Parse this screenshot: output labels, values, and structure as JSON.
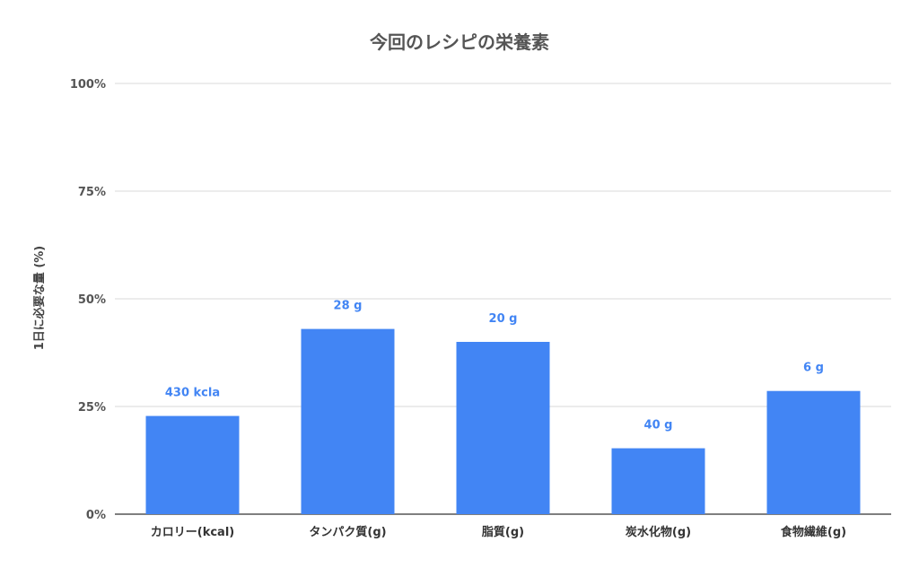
{
  "chart_data": {
    "type": "bar",
    "title": "今回のレシピの栄養素",
    "xlabel": "",
    "ylabel": "1日に必要な量 (%)",
    "ylim": [
      0,
      100
    ],
    "yticks": [
      "0%",
      "25%",
      "50%",
      "75%",
      "100%"
    ],
    "ytick_values": [
      0,
      25,
      50,
      75,
      100
    ],
    "categories": [
      "カロリー(kcal)",
      "タンパク質(g)",
      "脂質(g)",
      "炭水化物(g)",
      "食物繊維(g)"
    ],
    "values": [
      22.8,
      43.0,
      40.0,
      15.3,
      28.6
    ],
    "data_labels": [
      "430 kcla",
      "28 g",
      "20 g",
      "40 g",
      "6 g"
    ],
    "grid": true,
    "legend": "none",
    "bar_color": "#4285f4",
    "label_color": "#4285f4"
  }
}
